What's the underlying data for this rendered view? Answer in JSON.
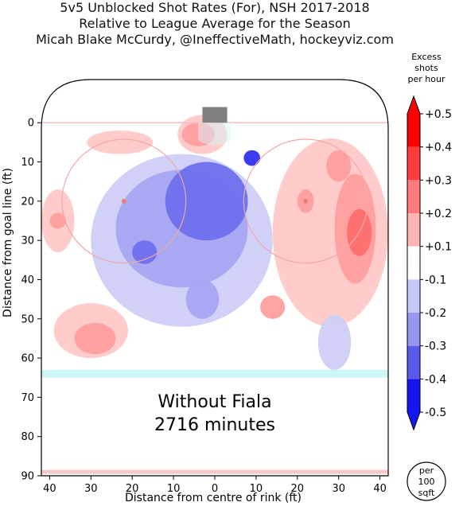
{
  "titles": [
    "5v5 Unblocked Shot Rates (For), NSH 2017-2018",
    "Relative to League Average for the Season",
    "Micah Blake McCurdy, @IneffectiveMath, hockeyviz.com"
  ],
  "annotation": {
    "line1": "Without Fiala",
    "line2": "2716 minutes"
  },
  "colorbar": {
    "title": [
      "Excess",
      "shots",
      "per hour"
    ],
    "ticks": [
      "+0.5",
      "+0.4",
      "+0.3",
      "+0.2",
      "+0.1",
      "-0.1",
      "-0.2",
      "-0.3",
      "-0.4",
      "-0.5"
    ],
    "colors": [
      "#ff0000",
      "#ff3b3b",
      "#ff7a7a",
      "#ffb3b3",
      "#ffffff",
      "#c8c8f7",
      "#9696f0",
      "#5a5aed",
      "#1414f0"
    ],
    "per_label": [
      "per",
      "100",
      "sqft"
    ]
  },
  "chart_data": {
    "type": "heatmap",
    "title": "5v5 Unblocked Shot Rates (For), NSH 2017-2018",
    "subtitle": "Relative to League Average for the Season",
    "xlabel": "Distance from centre of rink (ft)",
    "ylabel": "Distance from goal line (ft)",
    "xlim": [
      42,
      -42
    ],
    "ylim": [
      -11,
      90
    ],
    "xticks": [
      40,
      30,
      20,
      10,
      0,
      10,
      20,
      30,
      40
    ],
    "yticks": [
      0,
      10,
      20,
      30,
      40,
      50,
      60,
      70,
      80,
      90
    ],
    "color_scale": {
      "min": -0.5,
      "max": 0.5,
      "unit": "Excess shots per hour per 100 sqft"
    },
    "regions": [
      {
        "sign": "positive",
        "level": 0.1,
        "cx": -28,
        "cy": 28,
        "rx": 14,
        "ry": 24
      },
      {
        "sign": "positive",
        "level": 0.2,
        "cx": -34,
        "cy": 27,
        "rx": 5,
        "ry": 14
      },
      {
        "sign": "positive",
        "level": 0.2,
        "cx": -30,
        "cy": 11,
        "rx": 3,
        "ry": 4
      },
      {
        "sign": "positive",
        "level": 0.3,
        "cx": -35,
        "cy": 28,
        "rx": 3,
        "ry": 6
      },
      {
        "sign": "positive",
        "level": 0.2,
        "cx": -22,
        "cy": 20,
        "rx": 2,
        "ry": 3
      },
      {
        "sign": "positive",
        "level": 0.2,
        "cx": -14,
        "cy": 47,
        "rx": 3,
        "ry": 3
      },
      {
        "sign": "positive",
        "level": 0.1,
        "cx": 30,
        "cy": 53,
        "rx": 9,
        "ry": 7
      },
      {
        "sign": "positive",
        "level": 0.2,
        "cx": 29,
        "cy": 55,
        "rx": 5,
        "ry": 4
      },
      {
        "sign": "positive",
        "level": 0.1,
        "cx": 3,
        "cy": 3,
        "rx": 6,
        "ry": 5
      },
      {
        "sign": "positive",
        "level": 0.2,
        "cx": 4,
        "cy": 3,
        "rx": 4,
        "ry": 3
      },
      {
        "sign": "positive",
        "level": 0.1,
        "cx": 23,
        "cy": 5,
        "rx": 8,
        "ry": 3
      },
      {
        "sign": "positive",
        "level": 0.1,
        "cx": 38,
        "cy": 25,
        "rx": 4,
        "ry": 8
      },
      {
        "sign": "positive",
        "level": 0.2,
        "cx": 38,
        "cy": 25,
        "rx": 2,
        "ry": 2
      },
      {
        "sign": "negative",
        "level": -0.1,
        "cx": 8,
        "cy": 30,
        "rx": 22,
        "ry": 22
      },
      {
        "sign": "negative",
        "level": -0.2,
        "cx": 8,
        "cy": 27,
        "rx": 16,
        "ry": 15
      },
      {
        "sign": "negative",
        "level": -0.3,
        "cx": 2,
        "cy": 20,
        "rx": 10,
        "ry": 10
      },
      {
        "sign": "negative",
        "level": -0.4,
        "cx": -9,
        "cy": 9,
        "rx": 2,
        "ry": 2
      },
      {
        "sign": "negative",
        "level": -0.3,
        "cx": 17,
        "cy": 33,
        "rx": 3,
        "ry": 3
      },
      {
        "sign": "negative",
        "level": -0.2,
        "cx": 3,
        "cy": 45,
        "rx": 4,
        "ry": 5
      },
      {
        "sign": "negative",
        "level": -0.1,
        "cx": -29,
        "cy": 56,
        "rx": 4,
        "ry": 7
      }
    ]
  },
  "bottom_note": ""
}
